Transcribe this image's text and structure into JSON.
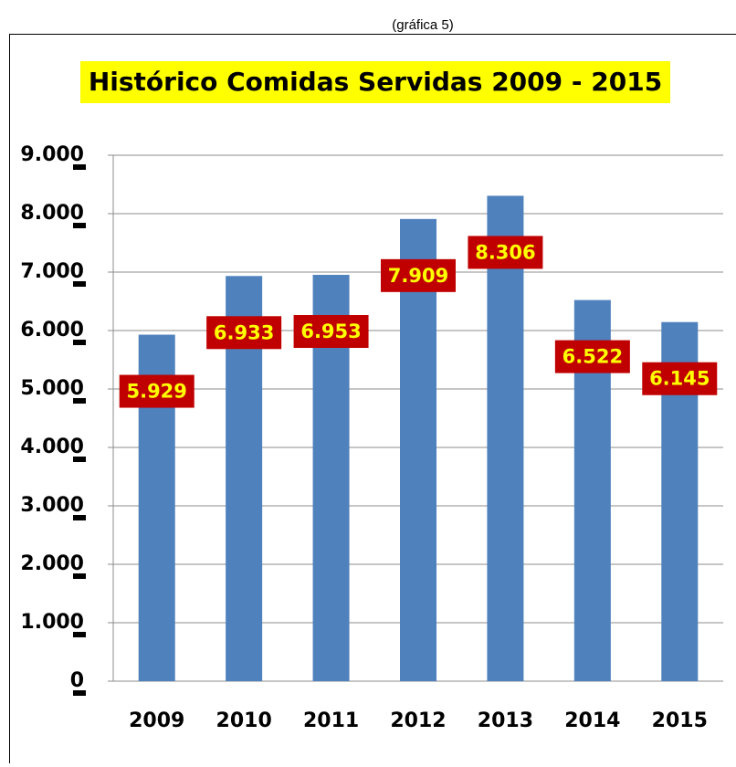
{
  "caption": "(gráfica 5)",
  "chart_data": {
    "type": "bar",
    "title": "Histórico Comidas Servidas 2009 - 2015",
    "categories": [
      "2009",
      "2010",
      "2011",
      "2012",
      "2013",
      "2014",
      "2015"
    ],
    "values": [
      5929,
      6933,
      6953,
      7909,
      8306,
      6522,
      6145
    ],
    "value_labels": [
      "5.929",
      "6.933",
      "6.953",
      "7.909",
      "8.306",
      "6.522",
      "6.145"
    ],
    "color": "#4f81bd",
    "ylim": [
      0,
      9000
    ],
    "yticks": [
      0,
      {
        "value": 1000,
        "label": "1.000"
      },
      {
        "value": 2000,
        "label": "2.000"
      },
      {
        "value": 3000,
        "label": "3.000"
      },
      {
        "value": 4000,
        "label": "4.000"
      },
      {
        "value": 5000,
        "label": "5.000"
      },
      {
        "value": 6000,
        "label": "6.000"
      },
      {
        "value": 7000,
        "label": "7.000"
      },
      {
        "value": 8000,
        "label": "8.000"
      },
      {
        "value": 9000,
        "label": "9.000"
      }
    ],
    "grid": true
  }
}
